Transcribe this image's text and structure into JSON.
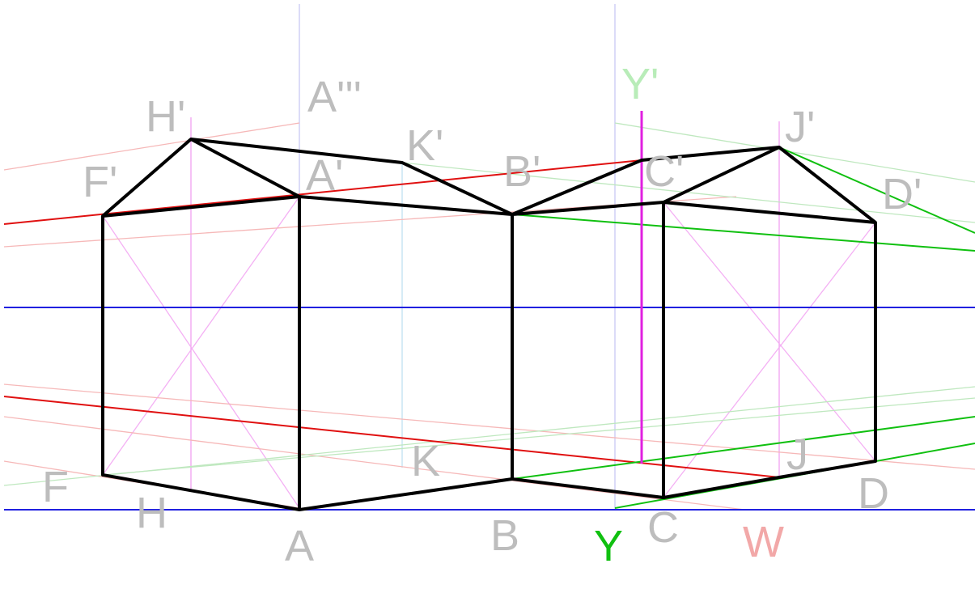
{
  "labels": [
    "H'",
    "A'''",
    "K'",
    "Y'",
    "J'",
    "F'",
    "A'",
    "B'",
    "C'",
    "D'",
    "F",
    "H",
    "K",
    "A",
    "B",
    "Y",
    "C",
    "J",
    "W",
    "D"
  ]
}
